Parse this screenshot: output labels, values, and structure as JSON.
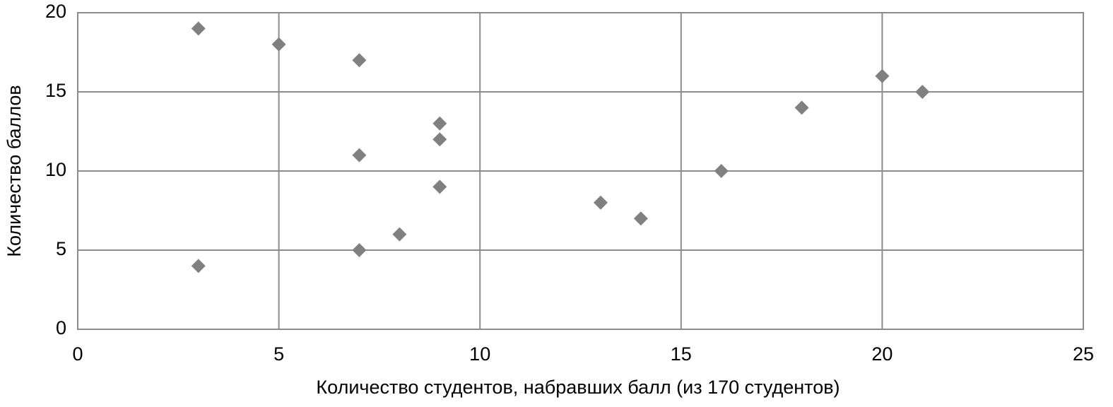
{
  "chart_data": {
    "type": "scatter",
    "xlabel": "Количество студентов, набравших балл (из 170 студентов)",
    "ylabel": "Количество баллов",
    "x": [
      3,
      5,
      7,
      9,
      9,
      7,
      9,
      8,
      7,
      3,
      13,
      14,
      16,
      18,
      20,
      21
    ],
    "values": [
      19,
      18,
      17,
      13,
      12,
      11,
      9,
      6,
      5,
      4,
      8,
      7,
      10,
      14,
      16,
      15
    ],
    "color": "#808080",
    "xlim": [
      0,
      25
    ],
    "xticks": [
      0,
      5,
      10,
      15,
      20,
      25
    ],
    "ylim": [
      0,
      20
    ],
    "yticks": [
      0,
      5,
      10,
      15,
      20
    ],
    "grid": true
  }
}
